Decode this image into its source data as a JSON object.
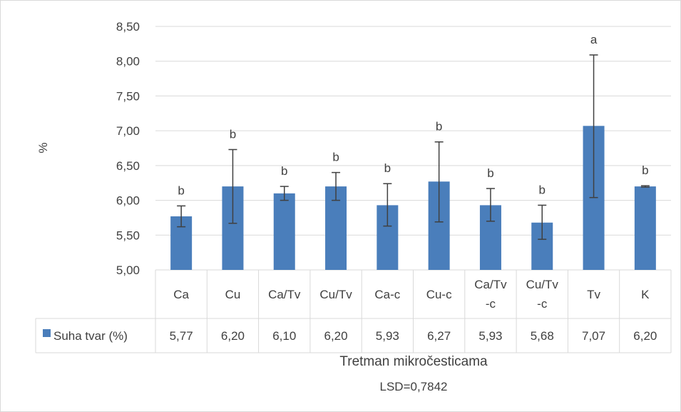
{
  "chart_data": {
    "type": "bar",
    "ylabel": "%",
    "xlabel": "Tretman mikročesticama",
    "note": "LSD=0,7842",
    "ylim": [
      5.0,
      8.5
    ],
    "yticks": [
      "5,00",
      "5,50",
      "6,00",
      "6,50",
      "7,00",
      "7,50",
      "8,00",
      "8,50"
    ],
    "ytick_values": [
      5.0,
      5.5,
      6.0,
      6.5,
      7.0,
      7.5,
      8.0,
      8.5
    ],
    "categories": [
      [
        "Ca"
      ],
      [
        "Cu"
      ],
      [
        "Ca/Tv"
      ],
      [
        "Cu/Tv"
      ],
      [
        "Ca-c"
      ],
      [
        "Cu-c"
      ],
      [
        "Ca/Tv",
        "-c"
      ],
      [
        "Cu/Tv",
        "-c"
      ],
      [
        "Tv"
      ],
      [
        "K"
      ]
    ],
    "series": [
      {
        "name": "Suha tvar (%)",
        "values": [
          5.77,
          6.2,
          6.1,
          6.2,
          5.93,
          6.27,
          5.93,
          5.68,
          7.07,
          6.2
        ],
        "value_labels": [
          "5,77",
          "6,20",
          "6,10",
          "6,20",
          "5,93",
          "6,27",
          "5,93",
          "5,68",
          "7,07",
          "6,20"
        ],
        "error_low": [
          5.62,
          5.67,
          6.0,
          6.0,
          5.63,
          5.69,
          5.7,
          5.44,
          6.04,
          6.19
        ],
        "error_high": [
          5.92,
          6.73,
          6.2,
          6.4,
          6.24,
          6.84,
          6.17,
          5.93,
          8.09,
          6.21
        ],
        "letters": [
          "b",
          "b",
          "b",
          "b",
          "b",
          "b",
          "b",
          "b",
          "a",
          "b"
        ]
      }
    ],
    "grid": true,
    "legend": "data-table",
    "colors": {
      "bar": "#4a7ebb",
      "grid": "#d9d9d9",
      "error": "#404040",
      "text": "#404040"
    }
  }
}
